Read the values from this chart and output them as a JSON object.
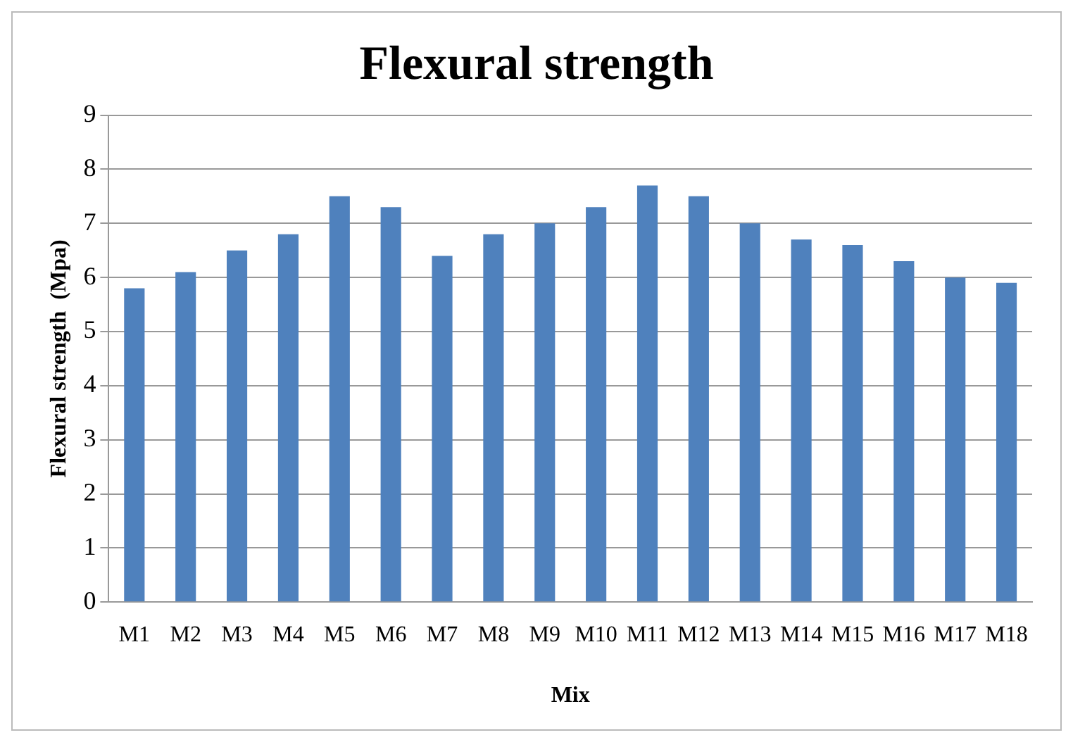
{
  "chart_data": {
    "type": "bar",
    "title": "Flexural strength",
    "xlabel": "Mix",
    "ylabel": "Flexural strength  (Mpa)",
    "categories": [
      "M1",
      "M2",
      "M3",
      "M4",
      "M5",
      "M6",
      "M7",
      "M8",
      "M9",
      "M10",
      "M11",
      "M12",
      "M13",
      "M14",
      "M15",
      "M16",
      "M17",
      "M18"
    ],
    "values": [
      5.8,
      6.1,
      6.5,
      6.8,
      7.5,
      7.3,
      6.4,
      6.8,
      7.0,
      7.3,
      7.7,
      7.5,
      7.0,
      6.7,
      6.6,
      6.3,
      6.0,
      5.9
    ],
    "color": "#4f81bd",
    "ylim": [
      0,
      9
    ],
    "yticks": [
      0,
      1,
      2,
      3,
      4,
      5,
      6,
      7,
      8,
      9
    ],
    "grid": "y",
    "legend": false
  }
}
